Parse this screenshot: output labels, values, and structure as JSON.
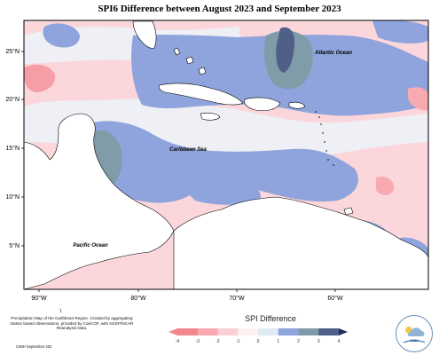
{
  "title": "SPI6 Difference between August 2023 and September 2023",
  "latitude_labels": [
    "25°N",
    "20°N",
    "15°N",
    "10°N",
    "5°N"
  ],
  "longitude_labels": [
    "90°W",
    "80°W",
    "70°W",
    "60°W"
  ],
  "region_labels": {
    "atlantic": "Atlantic Ocean",
    "caribbean": "Caribbean Sea",
    "pacific": "Pacific Ocean"
  },
  "footer": {
    "dot": "1",
    "description": "Precipitation Map of the Caribbean Region. Created by aggregating station based observations, provided by CariCOF, with NCEP/NCAR Reanalysis Data.",
    "credit": "CIMH September 202"
  },
  "legend": {
    "title": "SPI Difference",
    "ticks": [
      "-4",
      "-3",
      "-2",
      "-1",
      "0",
      "1",
      "2",
      "3",
      "4"
    ],
    "colors": [
      "#f3868e",
      "#f8aab0",
      "#fbd0d4",
      "#fdf0f1",
      "#dfeaf2",
      "#8fa3dc",
      "#7f9ca8",
      "#4f5f88"
    ]
  },
  "logo": {
    "label": "CIMH"
  },
  "colors": {
    "map_background": "#fbd7dc",
    "land": "#ffffff",
    "border": "#000000"
  }
}
